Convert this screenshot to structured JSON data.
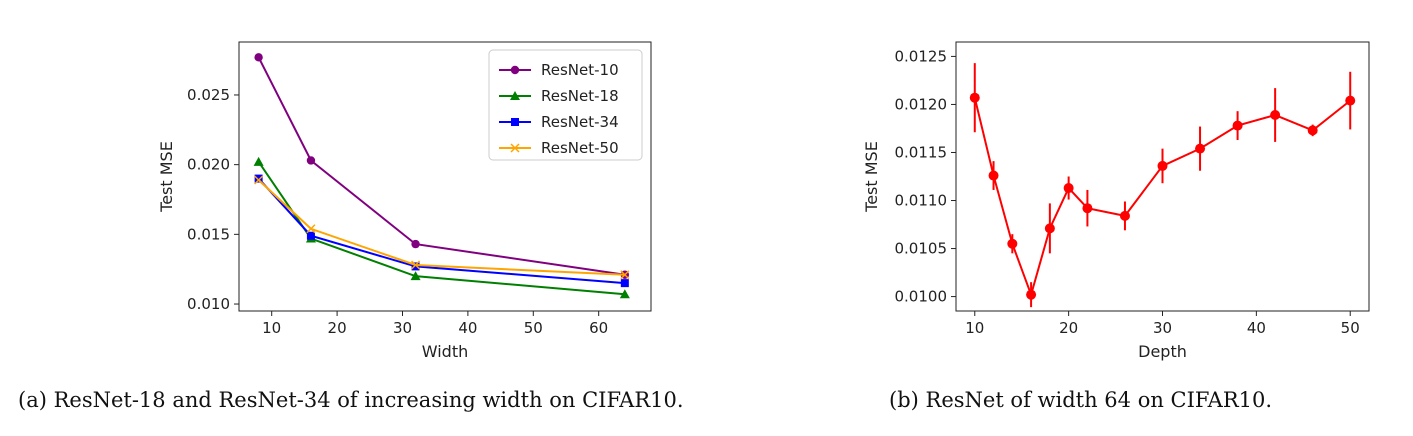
{
  "chart_data": [
    {
      "type": "line",
      "xlabel": "Width",
      "ylabel": "Test MSE",
      "xlim": [
        5,
        68
      ],
      "ylim": [
        0.0095,
        0.0288
      ],
      "xticks": [
        10,
        20,
        30,
        40,
        50,
        60
      ],
      "xtick_labels": [
        "10",
        "20",
        "30",
        "40",
        "50",
        "60"
      ],
      "yticks": [
        0.01,
        0.015,
        0.02,
        0.025
      ],
      "ytick_labels": [
        "0.010",
        "0.015",
        "0.020",
        "0.025"
      ],
      "grid": false,
      "legend_position": "top-right",
      "x": [
        8,
        16,
        32,
        64
      ],
      "series": [
        {
          "name": "ResNet-10",
          "color": "#800080",
          "marker": "circle",
          "values": [
            0.0277,
            0.0203,
            0.0143,
            0.0121
          ]
        },
        {
          "name": "ResNet-18",
          "color": "#008000",
          "marker": "triangle",
          "values": [
            0.0202,
            0.0147,
            0.012,
            0.0107
          ]
        },
        {
          "name": "ResNet-34",
          "color": "#0000ff",
          "marker": "square",
          "values": [
            0.019,
            0.0149,
            0.0127,
            0.0115
          ]
        },
        {
          "name": "ResNet-50",
          "color": "#ffa500",
          "marker": "x",
          "values": [
            0.0189,
            0.0154,
            0.0128,
            0.0121
          ]
        }
      ]
    },
    {
      "type": "line",
      "xlabel": "Depth",
      "ylabel": "Test MSE",
      "xlim": [
        8,
        52
      ],
      "ylim": [
        0.00985,
        0.01265
      ],
      "xticks": [
        10,
        20,
        30,
        40,
        50
      ],
      "xtick_labels": [
        "10",
        "20",
        "30",
        "40",
        "50"
      ],
      "yticks": [
        0.01,
        0.0105,
        0.011,
        0.0115,
        0.012,
        0.0125
      ],
      "ytick_labels": [
        "0.0100",
        "0.0105",
        "0.0110",
        "0.0115",
        "0.0120",
        "0.0125"
      ],
      "grid": false,
      "x": [
        10,
        12,
        14,
        16,
        18,
        20,
        22,
        26,
        30,
        34,
        38,
        42,
        46,
        50
      ],
      "series": [
        {
          "color": "#ff0000",
          "marker": "circle",
          "values": [
            0.01207,
            0.01126,
            0.01055,
            0.01002,
            0.01071,
            0.01113,
            0.01092,
            0.01084,
            0.01136,
            0.01154,
            0.01178,
            0.01189,
            0.01173,
            0.01204
          ],
          "error": [
            0.00036,
            0.00015,
            0.0001,
            0.00013,
            0.00026,
            0.00012,
            0.00019,
            0.00015,
            0.00018,
            0.00023,
            0.00015,
            0.00028,
            6e-05,
            0.0003
          ]
        }
      ]
    }
  ],
  "captions": {
    "left": "(a) ResNet-18 and ResNet-34 of increasing width on CIFAR10.",
    "right": "(b) ResNet of width 64 on CIFAR10."
  }
}
